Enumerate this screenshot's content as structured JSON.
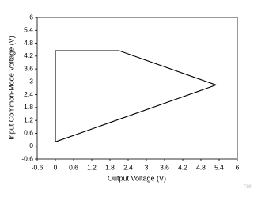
{
  "chart_data": {
    "type": "line",
    "x_label": "Output Voltage (V)",
    "y_label": "Input Common-Mode Voltage (V)",
    "figure_id": "C001",
    "series": [
      {
        "x": [
          0,
          0,
          2.1,
          5.3,
          0
        ],
        "values": [
          0.2,
          4.45,
          4.45,
          2.85,
          0.2
        ],
        "color": "#000000"
      }
    ],
    "xlim": [
      -0.6,
      6
    ],
    "xticks": [
      -0.6,
      0,
      0.6,
      1.2,
      1.8,
      2.4,
      3,
      3.6,
      4.2,
      4.8,
      5.4,
      6
    ],
    "ylim": [
      -0.6,
      6
    ],
    "yticks": [
      -0.6,
      0,
      0.6,
      1.2,
      1.8,
      2.4,
      3,
      3.6,
      4.2,
      4.8,
      5.4,
      6
    ],
    "grid": false
  }
}
